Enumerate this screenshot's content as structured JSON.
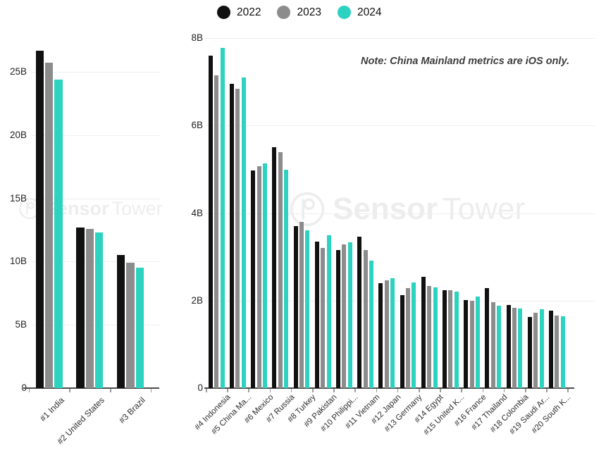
{
  "legend": {
    "items": [
      {
        "label": "2022",
        "color": "#111111"
      },
      {
        "label": "2023",
        "color": "#8c8c8c"
      },
      {
        "label": "2024",
        "color": "#2dd2c0"
      }
    ]
  },
  "note": "Note: China Mainland metrics are iOS only.",
  "watermark": {
    "bold": "Sensor",
    "light": "Tower"
  },
  "chart_data": [
    {
      "type": "bar",
      "categories": [
        "#1 India",
        "#2 United States",
        "#3 Brazil"
      ],
      "series": [
        {
          "name": "2022",
          "color": "#111111",
          "values": [
            26.7,
            12.7,
            10.5
          ]
        },
        {
          "name": "2023",
          "color": "#8c8c8c",
          "values": [
            25.7,
            12.6,
            9.9
          ]
        },
        {
          "name": "2024",
          "color": "#2dd2c0",
          "values": [
            24.4,
            12.3,
            9.5
          ]
        }
      ],
      "unit": "B",
      "ylim": [
        0,
        27
      ],
      "grid": true,
      "yticks": [
        {
          "v": 0,
          "label": "0"
        },
        {
          "v": 5,
          "label": "5B"
        },
        {
          "v": 10,
          "label": "10B"
        },
        {
          "v": 15,
          "label": "15B"
        },
        {
          "v": 20,
          "label": "20B"
        },
        {
          "v": 25,
          "label": "25B"
        }
      ]
    },
    {
      "type": "bar",
      "categories": [
        "#4 Indonesia",
        "#5 China Ma...",
        "#6 Mexico",
        "#7 Russia",
        "#8 Turkey",
        "#9 Pakistan",
        "#10 Philippi...",
        "#11 Vietnam",
        "#12 Japan",
        "#13 Germany",
        "#14 Egypt",
        "#15 United K...",
        "#16 France",
        "#17 Thailand",
        "#18 Colombia",
        "#19 Saudi Ar...",
        "#20 South K..."
      ],
      "series": [
        {
          "name": "2022",
          "color": "#111111",
          "values": [
            7.6,
            6.95,
            4.97,
            5.5,
            3.7,
            3.35,
            3.16,
            3.46,
            2.4,
            2.13,
            2.55,
            2.24,
            2.01,
            2.28,
            1.9,
            1.62,
            1.77
          ]
        },
        {
          "name": "2023",
          "color": "#8c8c8c",
          "values": [
            7.15,
            6.85,
            5.07,
            5.4,
            3.8,
            3.2,
            3.29,
            3.15,
            2.46,
            2.29,
            2.34,
            2.24,
            2.0,
            1.97,
            1.84,
            1.72,
            1.66
          ]
        },
        {
          "name": "2024",
          "color": "#2dd2c0",
          "values": [
            7.78,
            7.1,
            5.14,
            5.0,
            3.6,
            3.5,
            3.33,
            2.91,
            2.51,
            2.41,
            2.31,
            2.21,
            2.09,
            1.88,
            1.82,
            1.81,
            1.65
          ]
        }
      ],
      "unit": "B",
      "ylim": [
        0,
        8
      ],
      "grid": true,
      "yticks": [
        {
          "v": 0,
          "label": "0"
        },
        {
          "v": 2,
          "label": "2B"
        },
        {
          "v": 4,
          "label": "4B"
        },
        {
          "v": 6,
          "label": "6B"
        },
        {
          "v": 8,
          "label": "8B"
        }
      ]
    }
  ]
}
